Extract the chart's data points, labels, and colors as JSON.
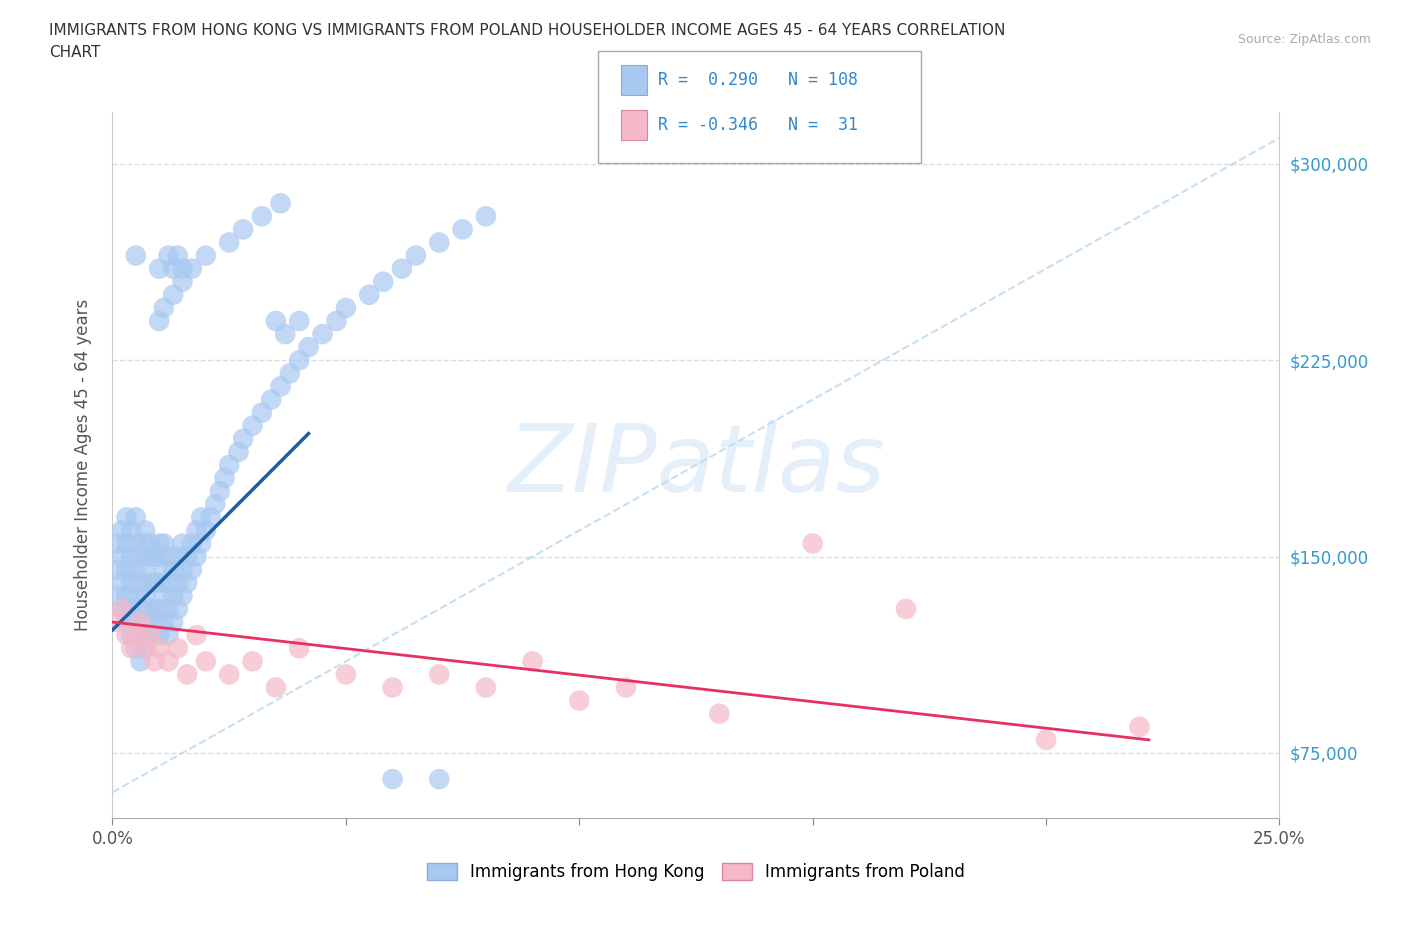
{
  "title_line1": "IMMIGRANTS FROM HONG KONG VS IMMIGRANTS FROM POLAND HOUSEHOLDER INCOME AGES 45 - 64 YEARS CORRELATION",
  "title_line2": "CHART",
  "source_text": "Source: ZipAtlas.com",
  "ylabel": "Householder Income Ages 45 - 64 years",
  "xlim": [
    0.0,
    0.25
  ],
  "ylim": [
    50000,
    320000
  ],
  "yticks": [
    75000,
    150000,
    225000,
    300000
  ],
  "ytick_labels": [
    "$75,000",
    "$150,000",
    "$225,000",
    "$300,000"
  ],
  "xticks": [
    0.0,
    0.05,
    0.1,
    0.15,
    0.2,
    0.25
  ],
  "xtick_labels": [
    "0.0%",
    "",
    "",
    "",
    "",
    "25.0%"
  ],
  "hk_color": "#a8c8f0",
  "poland_color": "#f5b8c8",
  "hk_line_color": "#1a5fa8",
  "poland_line_color": "#e83060",
  "diagonal_color": "#b8d8f0",
  "R_hk": 0.29,
  "N_hk": 108,
  "R_poland": -0.346,
  "N_poland": 31,
  "watermark": "ZIPatlas",
  "background_color": "#ffffff",
  "hk_scatter_x": [
    0.001,
    0.001,
    0.001,
    0.002,
    0.002,
    0.002,
    0.002,
    0.003,
    0.003,
    0.003,
    0.003,
    0.003,
    0.004,
    0.004,
    0.004,
    0.004,
    0.004,
    0.005,
    0.005,
    0.005,
    0.005,
    0.005,
    0.005,
    0.006,
    0.006,
    0.006,
    0.006,
    0.006,
    0.007,
    0.007,
    0.007,
    0.007,
    0.007,
    0.007,
    0.008,
    0.008,
    0.008,
    0.008,
    0.008,
    0.009,
    0.009,
    0.009,
    0.009,
    0.01,
    0.01,
    0.01,
    0.01,
    0.01,
    0.011,
    0.011,
    0.011,
    0.011,
    0.012,
    0.012,
    0.012,
    0.012,
    0.013,
    0.013,
    0.013,
    0.014,
    0.014,
    0.014,
    0.015,
    0.015,
    0.015,
    0.016,
    0.016,
    0.017,
    0.017,
    0.018,
    0.018,
    0.019,
    0.019,
    0.02,
    0.021,
    0.022,
    0.023,
    0.024,
    0.025,
    0.027,
    0.028,
    0.03,
    0.032,
    0.034,
    0.036,
    0.038,
    0.04,
    0.042,
    0.045,
    0.048,
    0.05,
    0.055,
    0.058,
    0.062,
    0.065,
    0.07,
    0.075,
    0.08,
    0.01,
    0.011,
    0.013,
    0.015,
    0.017,
    0.02,
    0.025,
    0.028,
    0.032,
    0.036
  ],
  "hk_scatter_y": [
    135000,
    145000,
    155000,
    130000,
    140000,
    150000,
    160000,
    125000,
    135000,
    145000,
    155000,
    165000,
    120000,
    130000,
    140000,
    150000,
    160000,
    115000,
    125000,
    135000,
    145000,
    155000,
    165000,
    110000,
    120000,
    130000,
    140000,
    150000,
    115000,
    125000,
    135000,
    145000,
    155000,
    160000,
    120000,
    130000,
    140000,
    150000,
    155000,
    125000,
    130000,
    140000,
    150000,
    120000,
    130000,
    140000,
    150000,
    155000,
    125000,
    135000,
    145000,
    155000,
    120000,
    130000,
    140000,
    150000,
    125000,
    135000,
    145000,
    130000,
    140000,
    150000,
    135000,
    145000,
    155000,
    140000,
    150000,
    145000,
    155000,
    150000,
    160000,
    155000,
    165000,
    160000,
    165000,
    170000,
    175000,
    180000,
    185000,
    190000,
    195000,
    200000,
    205000,
    210000,
    215000,
    220000,
    225000,
    230000,
    235000,
    240000,
    245000,
    250000,
    255000,
    260000,
    265000,
    270000,
    275000,
    280000,
    240000,
    245000,
    250000,
    255000,
    260000,
    265000,
    270000,
    275000,
    280000,
    285000
  ],
  "hk_outlier_x": [
    0.005,
    0.01,
    0.012,
    0.013,
    0.014,
    0.015,
    0.035,
    0.037,
    0.04,
    0.06,
    0.07
  ],
  "hk_outlier_y": [
    265000,
    260000,
    265000,
    260000,
    265000,
    260000,
    240000,
    235000,
    240000,
    65000,
    65000
  ],
  "poland_scatter_x": [
    0.001,
    0.002,
    0.003,
    0.004,
    0.005,
    0.006,
    0.007,
    0.008,
    0.009,
    0.01,
    0.012,
    0.014,
    0.016,
    0.018,
    0.02,
    0.025,
    0.03,
    0.035,
    0.04,
    0.05,
    0.06,
    0.07,
    0.08,
    0.09,
    0.1,
    0.11,
    0.13,
    0.15,
    0.17,
    0.2,
    0.22
  ],
  "poland_scatter_y": [
    125000,
    130000,
    120000,
    115000,
    120000,
    125000,
    115000,
    120000,
    110000,
    115000,
    110000,
    115000,
    105000,
    120000,
    110000,
    105000,
    110000,
    100000,
    115000,
    105000,
    100000,
    105000,
    100000,
    110000,
    95000,
    100000,
    90000,
    155000,
    130000,
    80000,
    85000
  ]
}
